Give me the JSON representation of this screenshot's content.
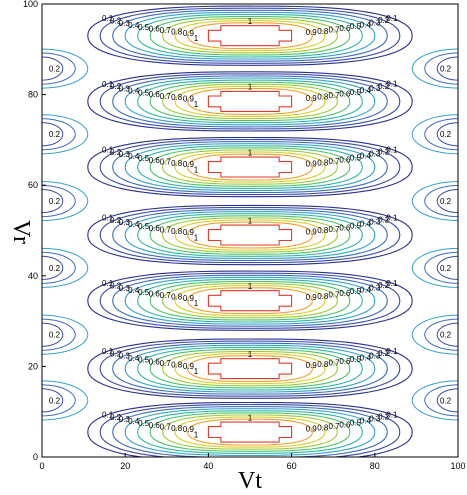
{
  "chart_data": {
    "type": "contour",
    "title": "",
    "xlabel": "Vt",
    "ylabel": "Vr",
    "xlim": [
      0,
      100
    ],
    "ylim": [
      0,
      100
    ],
    "x_ticks": [
      0,
      20,
      40,
      60,
      80,
      100
    ],
    "y_ticks": [
      0,
      20,
      40,
      60,
      80,
      100
    ],
    "x_tick_labels": [
      "0",
      "20",
      "40",
      "60",
      "80",
      "100"
    ],
    "y_tick_labels": [
      "0",
      "20",
      "40",
      "60",
      "80",
      "100"
    ],
    "grid": false,
    "legend": "none",
    "contour_levels": [
      0.1,
      0.2,
      0.3,
      0.4,
      0.5,
      0.6,
      0.7,
      0.8,
      0.9,
      1
    ],
    "level_labels": [
      "0.1",
      "0.2",
      "0.3",
      "0.4",
      "0.5",
      "0.6",
      "0.7",
      "0.8",
      "0.9",
      "1"
    ],
    "level_colors": [
      "#2b2f8e",
      "#3d4aa8",
      "#3e6cc0",
      "#35a2c9",
      "#2fb7a4",
      "#4cc36a",
      "#9ccc3c",
      "#d9cf2c",
      "#f0a030",
      "#e03b2e"
    ],
    "pattern": {
      "cell_centers_vr": [
        5.5,
        19.5,
        34.5,
        49,
        64,
        78.5,
        93
      ],
      "cell_center_vt": 50,
      "half_period_vr": 7.3
    }
  }
}
